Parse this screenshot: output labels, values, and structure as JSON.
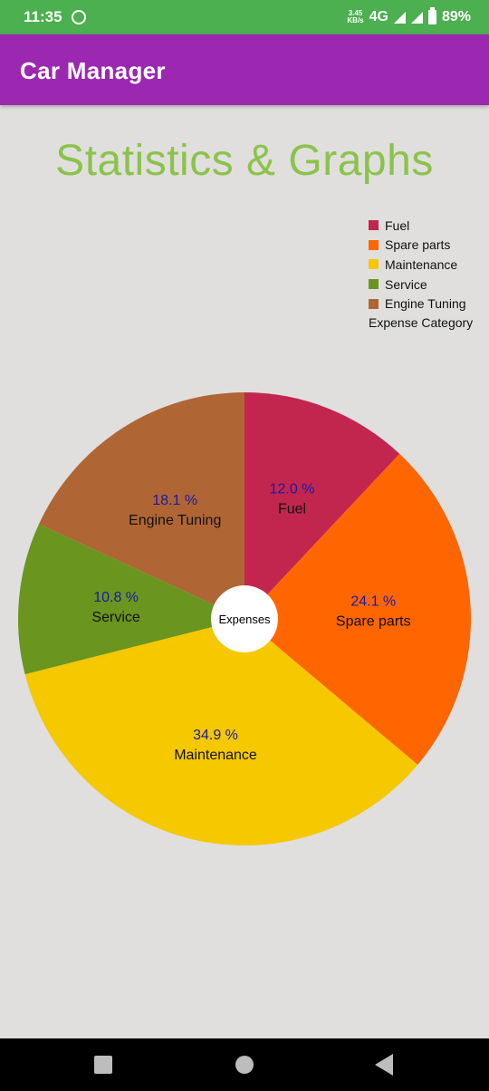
{
  "status_bar": {
    "time": "11:35",
    "net_speed_top": "3.45",
    "net_speed_bottom": "KB/s",
    "network": "4G",
    "battery": "89%"
  },
  "app_bar": {
    "title": "Car Manager"
  },
  "page": {
    "title": "Statistics & Graphs"
  },
  "legend": {
    "title": "Expense Category",
    "items": [
      {
        "label": "Fuel",
        "color": "#c2264e"
      },
      {
        "label": "Spare parts",
        "color": "#ff6600"
      },
      {
        "label": "Maintenance",
        "color": "#f5c800"
      },
      {
        "label": "Service",
        "color": "#6a961f"
      },
      {
        "label": "Engine Tuning",
        "color": "#b06535"
      }
    ]
  },
  "chart_data": {
    "type": "pie",
    "center_label": "Expenses",
    "slices": [
      {
        "label": "Fuel",
        "value": 12.0,
        "display": "12.0 %",
        "color": "#c2264e"
      },
      {
        "label": "Spare parts",
        "value": 24.1,
        "display": "24.1 %",
        "color": "#ff6600"
      },
      {
        "label": "Maintenance",
        "value": 34.9,
        "display": "34.9 %",
        "color": "#f5c800"
      },
      {
        "label": "Service",
        "value": 10.8,
        "display": "10.8 %",
        "color": "#6a961f"
      },
      {
        "label": "Engine Tuning",
        "value": 18.1,
        "display": "18.1 %",
        "color": "#b06535"
      }
    ]
  },
  "nav_bar": {
    "recents_icon": "square-icon",
    "home_icon": "circle-icon",
    "back_icon": "triangle-back-icon"
  }
}
